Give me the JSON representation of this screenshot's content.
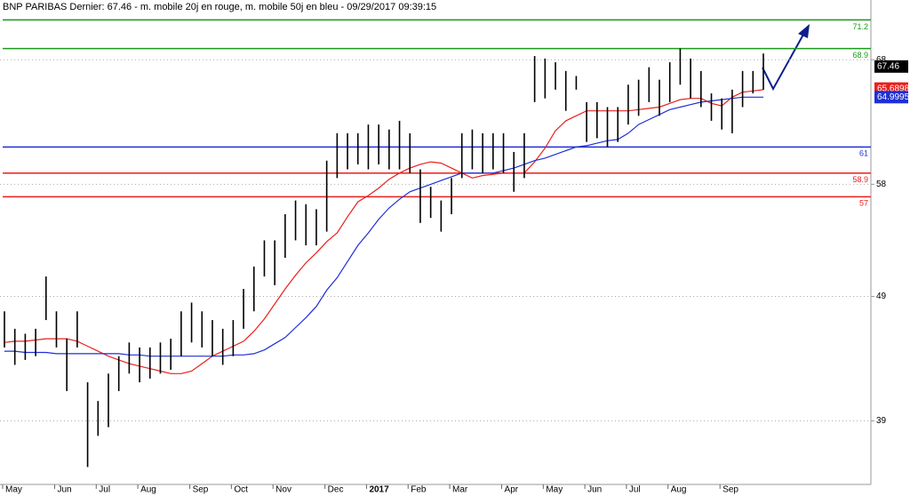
{
  "chart_data": {
    "type": "range_bar",
    "title": "BNP PARIBAS Dernier: 67.46 - m. mobile 20j en rouge, m. mobile 50j en bleu - 09/29/2017 09:39:15",
    "categories": [
      "May",
      null,
      null,
      null,
      null,
      "Jun",
      null,
      null,
      null,
      "Jul",
      null,
      null,
      null,
      "Aug",
      null,
      null,
      null,
      null,
      "Sep",
      null,
      null,
      null,
      "Oct",
      null,
      null,
      null,
      "Nov",
      null,
      null,
      null,
      null,
      "Dec",
      null,
      null,
      null,
      "2017",
      null,
      null,
      null,
      "Feb",
      null,
      null,
      null,
      "Mar",
      null,
      null,
      null,
      null,
      "Apr",
      null,
      null,
      null,
      "May",
      null,
      null,
      null,
      "Jun",
      null,
      null,
      null,
      "Jul",
      null,
      null,
      null,
      "Aug",
      null,
      null,
      null,
      null,
      "Sep",
      null,
      null,
      null,
      null
    ],
    "color": "#000000",
    "high": [
      47.8,
      46.4,
      46.0,
      46.4,
      50.6,
      47.8,
      45.6,
      47.8,
      42.1,
      40.6,
      42.8,
      44.2,
      45.3,
      44.9,
      44.9,
      45.3,
      45.6,
      47.8,
      48.5,
      47.8,
      47.1,
      46.4,
      47.1,
      49.6,
      51.4,
      53.5,
      53.5,
      55.6,
      56.7,
      56.4,
      56.0,
      59.9,
      62.1,
      62.1,
      62.1,
      62.8,
      62.8,
      62.4,
      63.1,
      62.1,
      59.2,
      57.8,
      56.7,
      58.5,
      62.1,
      62.4,
      62.1,
      62.1,
      62.1,
      60.6,
      62.1,
      68.3,
      68.1,
      67.8,
      67.1,
      66.7,
      64.6,
      64.6,
      64.2,
      64.2,
      66.0,
      66.4,
      67.4,
      66.4,
      67.8,
      68.9,
      68.1,
      67.1,
      65.3,
      64.9,
      65.6,
      67.1,
      67.1,
      68.5
    ],
    "low": [
      44.9,
      43.5,
      43.9,
      44.2,
      47.1,
      44.9,
      41.4,
      44.9,
      35.3,
      37.8,
      38.5,
      41.4,
      42.8,
      42.1,
      42.4,
      42.8,
      43.1,
      44.2,
      45.3,
      44.9,
      44.2,
      43.5,
      44.2,
      46.4,
      47.8,
      50.6,
      49.9,
      52.1,
      53.5,
      53.1,
      53.1,
      54.2,
      58.5,
      59.2,
      59.6,
      59.2,
      59.6,
      59.2,
      59.2,
      58.9,
      54.9,
      55.3,
      54.2,
      55.6,
      58.5,
      59.2,
      58.9,
      59.2,
      58.9,
      57.4,
      58.5,
      64.6,
      64.9,
      65.6,
      63.9,
      65.6,
      61.4,
      61.7,
      61.0,
      61.4,
      62.8,
      63.5,
      64.6,
      63.5,
      64.6,
      66.0,
      64.9,
      64.2,
      63.1,
      62.4,
      62.1,
      64.2,
      65.3,
      65.6
    ],
    "series": [
      {
        "color": "#e8201c",
        "values": [
          45.3,
          45.4,
          45.4,
          45.5,
          45.6,
          45.6,
          45.6,
          45.4,
          45.0,
          44.6,
          44.2,
          43.9,
          43.6,
          43.4,
          43.2,
          43.0,
          42.8,
          42.8,
          43.0,
          43.6,
          44.2,
          44.6,
          45.0,
          45.4,
          46.2,
          47.2,
          48.4,
          49.6,
          50.7,
          51.7,
          52.5,
          53.4,
          54.1,
          55.4,
          56.6,
          57.1,
          57.7,
          58.4,
          58.9,
          59.3,
          59.6,
          59.8,
          59.7,
          59.3,
          58.9,
          58.5,
          58.7,
          58.8,
          58.9,
          58.9,
          58.9,
          59.8,
          60.9,
          62.3,
          63.1,
          63.5,
          63.9,
          63.9,
          63.9,
          63.9,
          63.9,
          64.0,
          64.1,
          64.2,
          64.5,
          64.8,
          64.9,
          64.9,
          64.5,
          64.3,
          65.0,
          65.4,
          65.5,
          65.6
        ]
      },
      {
        "color": "#1f2fd6",
        "values": [
          44.6,
          44.6,
          44.5,
          44.5,
          44.5,
          44.4,
          44.4,
          44.4,
          44.4,
          44.4,
          44.4,
          44.4,
          44.3,
          44.3,
          44.2,
          44.2,
          44.2,
          44.2,
          44.2,
          44.2,
          44.2,
          44.2,
          44.3,
          44.3,
          44.4,
          44.7,
          45.2,
          45.7,
          46.5,
          47.3,
          48.2,
          49.5,
          50.5,
          51.8,
          53.1,
          54.1,
          55.2,
          56.1,
          56.8,
          57.4,
          57.7,
          58.0,
          58.3,
          58.6,
          58.9,
          58.9,
          58.9,
          58.9,
          59.1,
          59.3,
          59.6,
          59.9,
          60.1,
          60.4,
          60.7,
          61.0,
          61.1,
          61.3,
          61.5,
          61.6,
          62.1,
          62.8,
          63.2,
          63.6,
          64.0,
          64.2,
          64.4,
          64.6,
          64.7,
          64.8,
          64.9,
          65.0,
          65.0,
          65.0
        ]
      }
    ],
    "hlines": [
      {
        "value": 71.2,
        "color": "#1a9a1a"
      },
      {
        "value": 68.9,
        "color": "#1a9a1a"
      },
      {
        "value": 61,
        "color": "#1f2fd6"
      },
      {
        "value": 58.9,
        "color": "#e8201c"
      },
      {
        "value": 57,
        "color": "#e8201c"
      }
    ],
    "price_labels": [
      {
        "value": 67.46,
        "color": "#000000"
      },
      {
        "value": 65.6898,
        "color": "#e8201c"
      },
      {
        "value": 64.9995,
        "color": "#1f2fd6"
      }
    ],
    "ylim": [
      33.9,
      72.8
    ],
    "yticks": [
      39,
      49,
      58,
      68
    ],
    "grid": true
  }
}
